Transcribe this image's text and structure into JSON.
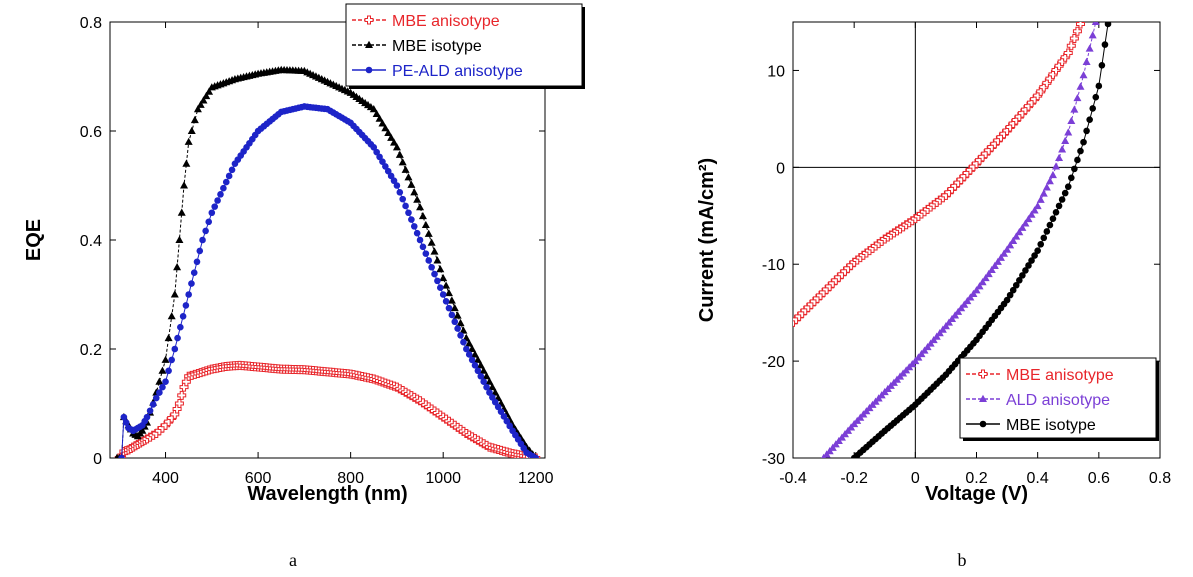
{
  "chart_data": [
    {
      "type": "scatter",
      "panel_label": "a",
      "xlabel": "Wavelength (nm)",
      "ylabel": "EQE",
      "xlim": [
        280,
        1220
      ],
      "ylim": [
        0,
        0.8
      ],
      "xticks": [
        "400",
        "600",
        "800",
        "1000",
        "1200"
      ],
      "yticks": [
        "0",
        "0.2",
        "0.4",
        "0.6",
        "0.8"
      ],
      "legend_position": "top-right",
      "series": [
        {
          "name": "MBE anisotype",
          "color": "#e8262b",
          "marker": "open-cross",
          "line": "dashed",
          "points": [
            [
              300,
              0
            ],
            [
              305,
              0
            ],
            [
              310,
              0.012
            ],
            [
              320,
              0.015
            ],
            [
              330,
              0.02
            ],
            [
              340,
              0.025
            ],
            [
              350,
              0.03
            ],
            [
              360,
              0.035
            ],
            [
              380,
              0.045
            ],
            [
              400,
              0.06
            ],
            [
              420,
              0.08
            ],
            [
              430,
              0.1
            ],
            [
              440,
              0.13
            ],
            [
              450,
              0.15
            ],
            [
              470,
              0.155
            ],
            [
              500,
              0.163
            ],
            [
              530,
              0.168
            ],
            [
              560,
              0.17
            ],
            [
              600,
              0.167
            ],
            [
              650,
              0.163
            ],
            [
              700,
              0.162
            ],
            [
              750,
              0.158
            ],
            [
              800,
              0.154
            ],
            [
              850,
              0.145
            ],
            [
              900,
              0.13
            ],
            [
              950,
              0.105
            ],
            [
              1000,
              0.075
            ],
            [
              1050,
              0.045
            ],
            [
              1100,
              0.02
            ],
            [
              1150,
              0.008
            ],
            [
              1180,
              0.003
            ],
            [
              1200,
              0
            ]
          ]
        },
        {
          "name": "MBE isotype",
          "color": "#000000",
          "marker": "filled-triangle",
          "line": "dashed",
          "points": [
            [
              295,
              0
            ],
            [
              305,
              0
            ],
            [
              310,
              0.075
            ],
            [
              320,
              0.06
            ],
            [
              330,
              0.045
            ],
            [
              340,
              0.04
            ],
            [
              350,
              0.05
            ],
            [
              360,
              0.065
            ],
            [
              380,
              0.12
            ],
            [
              400,
              0.18
            ],
            [
              420,
              0.3
            ],
            [
              430,
              0.4
            ],
            [
              440,
              0.5
            ],
            [
              450,
              0.58
            ],
            [
              470,
              0.64
            ],
            [
              500,
              0.68
            ],
            [
              550,
              0.695
            ],
            [
              600,
              0.705
            ],
            [
              650,
              0.712
            ],
            [
              700,
              0.71
            ],
            [
              750,
              0.69
            ],
            [
              800,
              0.67
            ],
            [
              850,
              0.64
            ],
            [
              900,
              0.57
            ],
            [
              950,
              0.46
            ],
            [
              1000,
              0.33
            ],
            [
              1050,
              0.22
            ],
            [
              1100,
              0.14
            ],
            [
              1150,
              0.06
            ],
            [
              1180,
              0.02
            ],
            [
              1200,
              0
            ]
          ]
        },
        {
          "name": "PE-ALD anisotype",
          "color": "#1d24c8",
          "marker": "filled-circle",
          "line": "solid",
          "points": [
            [
              305,
              0
            ],
            [
              310,
              0.075
            ],
            [
              320,
              0.055
            ],
            [
              330,
              0.05
            ],
            [
              340,
              0.055
            ],
            [
              350,
              0.06
            ],
            [
              360,
              0.075
            ],
            [
              380,
              0.11
            ],
            [
              400,
              0.14
            ],
            [
              420,
              0.2
            ],
            [
              450,
              0.3
            ],
            [
              480,
              0.4
            ],
            [
              500,
              0.45
            ],
            [
              550,
              0.54
            ],
            [
              600,
              0.6
            ],
            [
              650,
              0.635
            ],
            [
              700,
              0.645
            ],
            [
              750,
              0.64
            ],
            [
              800,
              0.615
            ],
            [
              850,
              0.57
            ],
            [
              900,
              0.5
            ],
            [
              950,
              0.4
            ],
            [
              1000,
              0.3
            ],
            [
              1050,
              0.2
            ],
            [
              1100,
              0.12
            ],
            [
              1150,
              0.05
            ],
            [
              1180,
              0.01
            ],
            [
              1200,
              0
            ]
          ]
        }
      ]
    },
    {
      "type": "scatter",
      "panel_label": "b",
      "xlabel": "Voltage (V)",
      "ylabel": "Current (mA/cm²)",
      "xlim": [
        -0.4,
        0.8
      ],
      "ylim": [
        -30,
        15
      ],
      "xticks": [
        "-0.4",
        "-0.2",
        "0",
        "0.2",
        "0.4",
        "0.6",
        "0.8"
      ],
      "yticks": [
        "-30",
        "-20",
        "-10",
        "0",
        "10"
      ],
      "legend_position": "bottom-right",
      "series": [
        {
          "name": "MBE anisotype",
          "color": "#e8262b",
          "marker": "open-cross",
          "line": "dashed",
          "points": [
            [
              -0.4,
              -16
            ],
            [
              -0.3,
              -12.9
            ],
            [
              -0.2,
              -9.8
            ],
            [
              -0.1,
              -7.4
            ],
            [
              0,
              -5.3
            ],
            [
              0.1,
              -2.9
            ],
            [
              0.2,
              0.4
            ],
            [
              0.3,
              3.8
            ],
            [
              0.4,
              7.4
            ],
            [
              0.5,
              11.8
            ],
            [
              0.54,
              14.8
            ]
          ]
        },
        {
          "name": "ALD anisotype",
          "color": "#7b3fd6",
          "marker": "filled-triangle",
          "line": "dashed",
          "points": [
            [
              -0.3,
              -30
            ],
            [
              -0.2,
              -26.5
            ],
            [
              -0.1,
              -23.2
            ],
            [
              0,
              -20
            ],
            [
              0.1,
              -16.4
            ],
            [
              0.2,
              -12.7
            ],
            [
              0.3,
              -8.5
            ],
            [
              0.4,
              -4
            ],
            [
              0.45,
              -0.8
            ],
            [
              0.5,
              3.6
            ],
            [
              0.55,
              9.5
            ],
            [
              0.59,
              15
            ]
          ]
        },
        {
          "name": "MBE isotype",
          "color": "#000000",
          "marker": "filled-circle",
          "line": "solid",
          "points": [
            [
              -0.2,
              -30
            ],
            [
              -0.1,
              -27.2
            ],
            [
              0,
              -24.5
            ],
            [
              0.1,
              -21.4
            ],
            [
              0.2,
              -17.8
            ],
            [
              0.3,
              -13.7
            ],
            [
              0.4,
              -8.6
            ],
            [
              0.5,
              -2
            ],
            [
              0.55,
              2.6
            ],
            [
              0.6,
              8.4
            ],
            [
              0.63,
              14.8
            ]
          ]
        }
      ]
    }
  ]
}
